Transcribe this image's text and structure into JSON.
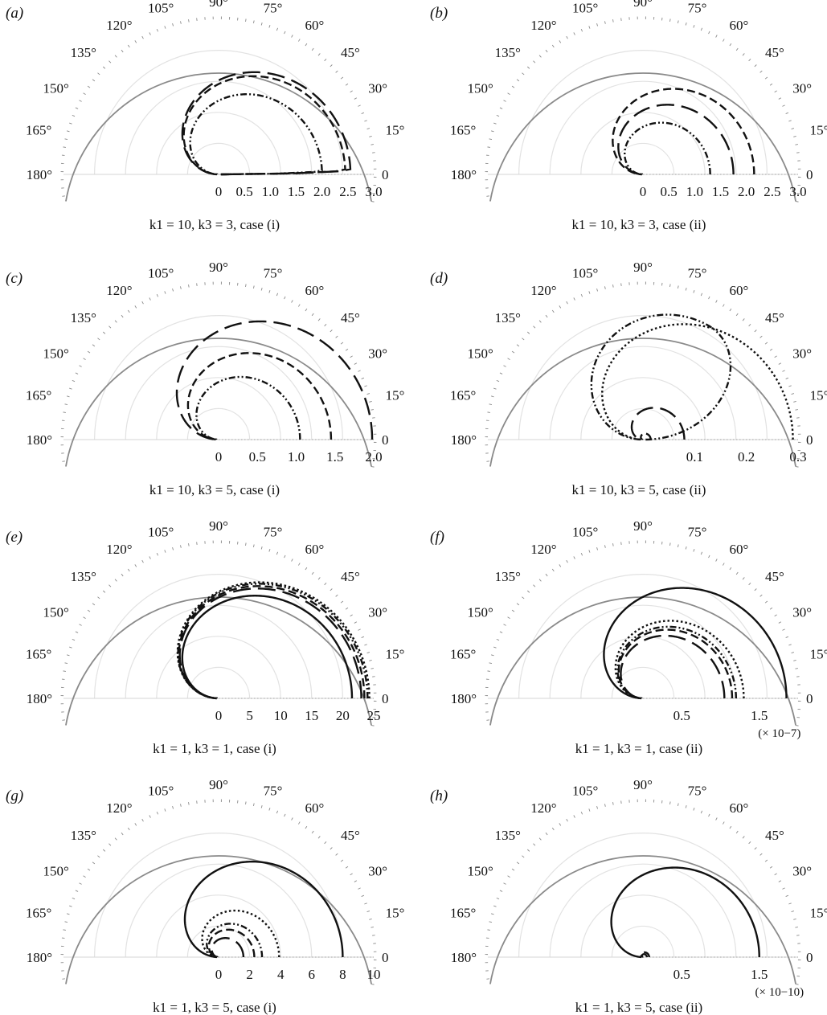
{
  "figure": {
    "angle_labels": [
      "0",
      "15°",
      "30°",
      "45°",
      "60°",
      "75°",
      "90°",
      "105°",
      "120°",
      "135°",
      "150°",
      "165°",
      "180°"
    ]
  },
  "chart_data": [
    {
      "type": "polar",
      "panel": "(a)",
      "caption": "k1 = 10, k3 = 3, case (i)",
      "rlim": [
        0,
        3.0
      ],
      "r_ticks": [
        "0",
        "0.5",
        "1.0",
        "1.5",
        "2.0",
        "2.5",
        "3.0"
      ],
      "theta_range_deg": [
        0,
        180
      ],
      "series": [
        {
          "style": "long-dash",
          "curve": "loop",
          "r_max": 2.55,
          "peak_theta_deg": 2,
          "cusp_r": 0.05
        },
        {
          "style": "dash",
          "curve": "loop",
          "r_max": 2.45,
          "peak_theta_deg": 2,
          "cusp_r": 0.05
        },
        {
          "style": "dash-dot-dot",
          "curve": "loop",
          "r_max": 2.0,
          "peak_theta_deg": 2,
          "cusp_r": 0.03
        }
      ]
    },
    {
      "type": "polar",
      "panel": "(b)",
      "caption": "k1 = 10, k3 = 3, case (ii)",
      "rlim": [
        0,
        3.0
      ],
      "r_ticks": [
        "0",
        "0.5",
        "1.0",
        "1.5",
        "2.0",
        "2.5",
        "3.0"
      ],
      "theta_range_deg": [
        0,
        180
      ],
      "series": [
        {
          "style": "long-dash",
          "curve": "loop",
          "r_max": 1.75,
          "peak_theta_deg": 0,
          "cusp_r": 0.02
        },
        {
          "style": "dash",
          "curve": "loop",
          "r_max": 2.15,
          "peak_theta_deg": 0,
          "cusp_r": 0.02
        },
        {
          "style": "dash-dot-dot",
          "curve": "loop",
          "r_max": 1.3,
          "peak_theta_deg": 0,
          "cusp_r": 0.02
        }
      ]
    },
    {
      "type": "polar",
      "panel": "(c)",
      "caption": "k1 = 10, k3 = 5, case (i)",
      "rlim": [
        0,
        2.0
      ],
      "r_ticks": [
        "0",
        "0.5",
        "1.0",
        "1.5",
        "2.0"
      ],
      "theta_range_deg": [
        0,
        180
      ],
      "series": [
        {
          "style": "long-dash",
          "curve": "loop",
          "r_max": 1.98,
          "peak_theta_deg": 0,
          "cusp_r": 0.04
        },
        {
          "style": "dash",
          "curve": "loop",
          "r_max": 1.45,
          "peak_theta_deg": 0,
          "cusp_r": 0.04
        },
        {
          "style": "dash-dot-dot",
          "curve": "loop",
          "r_max": 1.05,
          "peak_theta_deg": 0,
          "cusp_r": 0.03
        }
      ]
    },
    {
      "type": "polar",
      "panel": "(d)",
      "caption": "k1 = 10, k3 = 5, case (ii)",
      "rlim": [
        0,
        0.3
      ],
      "r_ticks": [
        "0.1",
        "0.2",
        "0.3"
      ],
      "theta_range_deg": [
        0,
        180
      ],
      "series": [
        {
          "style": "long-dash",
          "curve": "loop",
          "r_max": 0.08,
          "peak_theta_deg": 0,
          "cusp_r": 0.004
        },
        {
          "style": "dash",
          "curve": "loop",
          "r_max": 0.015,
          "peak_theta_deg": 0,
          "cusp_r": 0.002
        },
        {
          "style": "dash-dot-dot",
          "curve": "loop",
          "r_max": 0.255,
          "peak_theta_deg": 60,
          "cusp_r": 0.004
        },
        {
          "style": "dot",
          "curve": "loop",
          "r_max": 0.29,
          "peak_theta_deg": 0,
          "cusp_r": 0.004
        }
      ]
    },
    {
      "type": "polar",
      "panel": "(e)",
      "caption": "k1 = 1, k3 = 1, case (i)",
      "rlim": [
        0,
        25
      ],
      "r_ticks": [
        "0",
        "5",
        "10",
        "15",
        "20",
        "25"
      ],
      "theta_range_deg": [
        0,
        180
      ],
      "series": [
        {
          "style": "solid",
          "curve": "loop",
          "r_max": 21.5,
          "peak_theta_deg": 0,
          "cusp_r": 0.3
        },
        {
          "style": "long-dash",
          "curve": "loop",
          "r_max": 23.0,
          "peak_theta_deg": 0,
          "cusp_r": 0.3
        },
        {
          "style": "dash",
          "curve": "loop",
          "r_max": 23.5,
          "peak_theta_deg": 0,
          "cusp_r": 0.3
        },
        {
          "style": "dash-dot-dot",
          "curve": "loop",
          "r_max": 24.0,
          "peak_theta_deg": 0,
          "cusp_r": 0.3
        },
        {
          "style": "dot",
          "curve": "loop",
          "r_max": 24.3,
          "peak_theta_deg": 0,
          "cusp_r": 0.3
        }
      ]
    },
    {
      "type": "polar",
      "panel": "(f)",
      "caption": "k1 = 1, k3 = 1, case (ii)",
      "rlim": [
        0,
        2.0
      ],
      "r_ticks": [
        "0.5",
        "1.5"
      ],
      "scale_note": "(× 10−7)",
      "theta_range_deg": [
        0,
        180
      ],
      "series": [
        {
          "style": "solid",
          "curve": "loop",
          "r_max": 1.85,
          "peak_theta_deg": 0,
          "cusp_r": 0.02
        },
        {
          "style": "dot",
          "curve": "loop",
          "r_max": 1.3,
          "peak_theta_deg": 0,
          "cusp_r": 0.02
        },
        {
          "style": "dash-dot-dot",
          "curve": "loop",
          "r_max": 1.2,
          "peak_theta_deg": 0,
          "cusp_r": 0.02
        },
        {
          "style": "dash",
          "curve": "loop",
          "r_max": 1.15,
          "peak_theta_deg": 0,
          "cusp_r": 0.02
        },
        {
          "style": "long-dash",
          "curve": "loop",
          "r_max": 1.05,
          "peak_theta_deg": 0,
          "cusp_r": 0.02
        }
      ]
    },
    {
      "type": "polar",
      "panel": "(g)",
      "caption": "k1 = 1, k3 = 5, case (i)",
      "rlim": [
        0,
        10
      ],
      "r_ticks": [
        "0",
        "2",
        "4",
        "6",
        "8",
        "10"
      ],
      "theta_range_deg": [
        0,
        180
      ],
      "series": [
        {
          "style": "solid",
          "curve": "loop",
          "r_max": 8.0,
          "peak_theta_deg": 0,
          "cusp_r": 0.1
        },
        {
          "style": "dot",
          "curve": "loop",
          "r_max": 3.9,
          "peak_theta_deg": 0,
          "cusp_r": 0.1
        },
        {
          "style": "dash-dot-dot",
          "curve": "loop",
          "r_max": 2.8,
          "peak_theta_deg": 0,
          "cusp_r": 0.1
        },
        {
          "style": "dash",
          "curve": "loop",
          "r_max": 2.3,
          "peak_theta_deg": 0,
          "cusp_r": 0.1
        },
        {
          "style": "long-dash",
          "curve": "loop",
          "r_max": 1.6,
          "peak_theta_deg": 0,
          "cusp_r": 0.1
        }
      ]
    },
    {
      "type": "polar",
      "panel": "(h)",
      "caption": "k1 = 1, k3 = 5, case (ii)",
      "rlim": [
        0,
        2.0
      ],
      "r_ticks": [
        "0.5",
        "1.5"
      ],
      "scale_note": "(× 10−10)",
      "theta_range_deg": [
        0,
        180
      ],
      "series": [
        {
          "style": "solid",
          "curve": "loop",
          "r_max": 1.5,
          "peak_theta_deg": 0,
          "cusp_r": 0.02
        },
        {
          "style": "dash",
          "curve": "loop",
          "r_max": 0.08,
          "peak_theta_deg": 0,
          "cusp_r": 0.01
        },
        {
          "style": "long-dash",
          "curve": "loop",
          "r_max": 0.05,
          "peak_theta_deg": 0,
          "cusp_r": 0.01
        }
      ]
    }
  ]
}
